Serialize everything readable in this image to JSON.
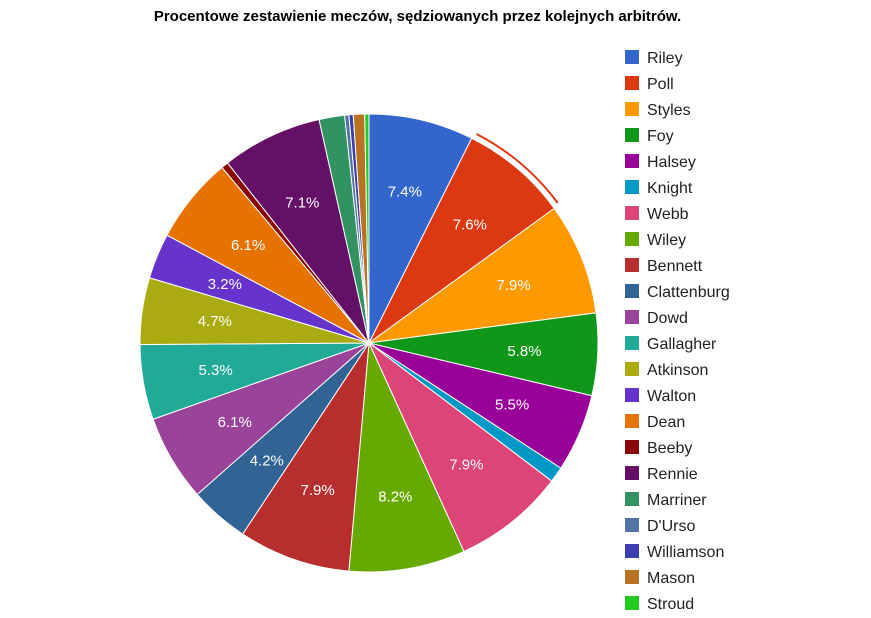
{
  "chart_data": {
    "type": "pie",
    "title": "Procentowe zestawienie meczów, sędziowanych przez kolejnych arbitrów.",
    "legend_position": "right",
    "highlighted_slice": "Poll",
    "slices": [
      {
        "label": "Riley",
        "value": 7.4,
        "color": "#3366cc",
        "show_label": true,
        "display": "7.4%"
      },
      {
        "label": "Poll",
        "value": 7.6,
        "color": "#dc3912",
        "show_label": true,
        "display": "7.6%"
      },
      {
        "label": "Styles",
        "value": 7.9,
        "color": "#ff9900",
        "show_label": true,
        "display": "7.9%"
      },
      {
        "label": "Foy",
        "value": 5.8,
        "color": "#109618",
        "show_label": true,
        "display": "5.8%"
      },
      {
        "label": "Halsey",
        "value": 5.5,
        "color": "#990099",
        "show_label": true,
        "display": "5.5%"
      },
      {
        "label": "Knight",
        "value": 1.1,
        "color": "#0099c6",
        "show_label": false,
        "display": ""
      },
      {
        "label": "Webb",
        "value": 7.9,
        "color": "#dd4477",
        "show_label": true,
        "display": "7.9%"
      },
      {
        "label": "Wiley",
        "value": 8.2,
        "color": "#66aa00",
        "show_label": true,
        "display": "8.2%"
      },
      {
        "label": "Bennett",
        "value": 7.9,
        "color": "#b82e2e",
        "show_label": true,
        "display": "7.9%"
      },
      {
        "label": "Clattenburg",
        "value": 4.2,
        "color": "#316395",
        "show_label": true,
        "display": "4.2%"
      },
      {
        "label": "Dowd",
        "value": 6.1,
        "color": "#994499",
        "show_label": true,
        "display": "6.1%"
      },
      {
        "label": "Gallagher",
        "value": 5.3,
        "color": "#22aa99",
        "show_label": true,
        "display": "5.3%"
      },
      {
        "label": "Atkinson",
        "value": 4.7,
        "color": "#aaaa11",
        "show_label": true,
        "display": "4.7%"
      },
      {
        "label": "Walton",
        "value": 3.2,
        "color": "#6633cc",
        "show_label": true,
        "display": "3.2%"
      },
      {
        "label": "Dean",
        "value": 6.1,
        "color": "#e67300",
        "show_label": true,
        "display": "6.1%"
      },
      {
        "label": "Beeby",
        "value": 0.5,
        "color": "#8b0707",
        "show_label": false,
        "display": ""
      },
      {
        "label": "Rennie",
        "value": 7.1,
        "color": "#651067",
        "show_label": true,
        "display": "7.1%"
      },
      {
        "label": "Marriner",
        "value": 1.8,
        "color": "#329262",
        "show_label": false,
        "display": ""
      },
      {
        "label": "D'Urso",
        "value": 0.3,
        "color": "#5574a6",
        "show_label": false,
        "display": ""
      },
      {
        "label": "Williamson",
        "value": 0.3,
        "color": "#3b3eac",
        "show_label": false,
        "display": ""
      },
      {
        "label": "Mason",
        "value": 0.8,
        "color": "#b77322",
        "show_label": false,
        "display": ""
      },
      {
        "label": "Stroud",
        "value": 0.3,
        "color": "#22cc22",
        "show_label": false,
        "display": ""
      }
    ]
  }
}
